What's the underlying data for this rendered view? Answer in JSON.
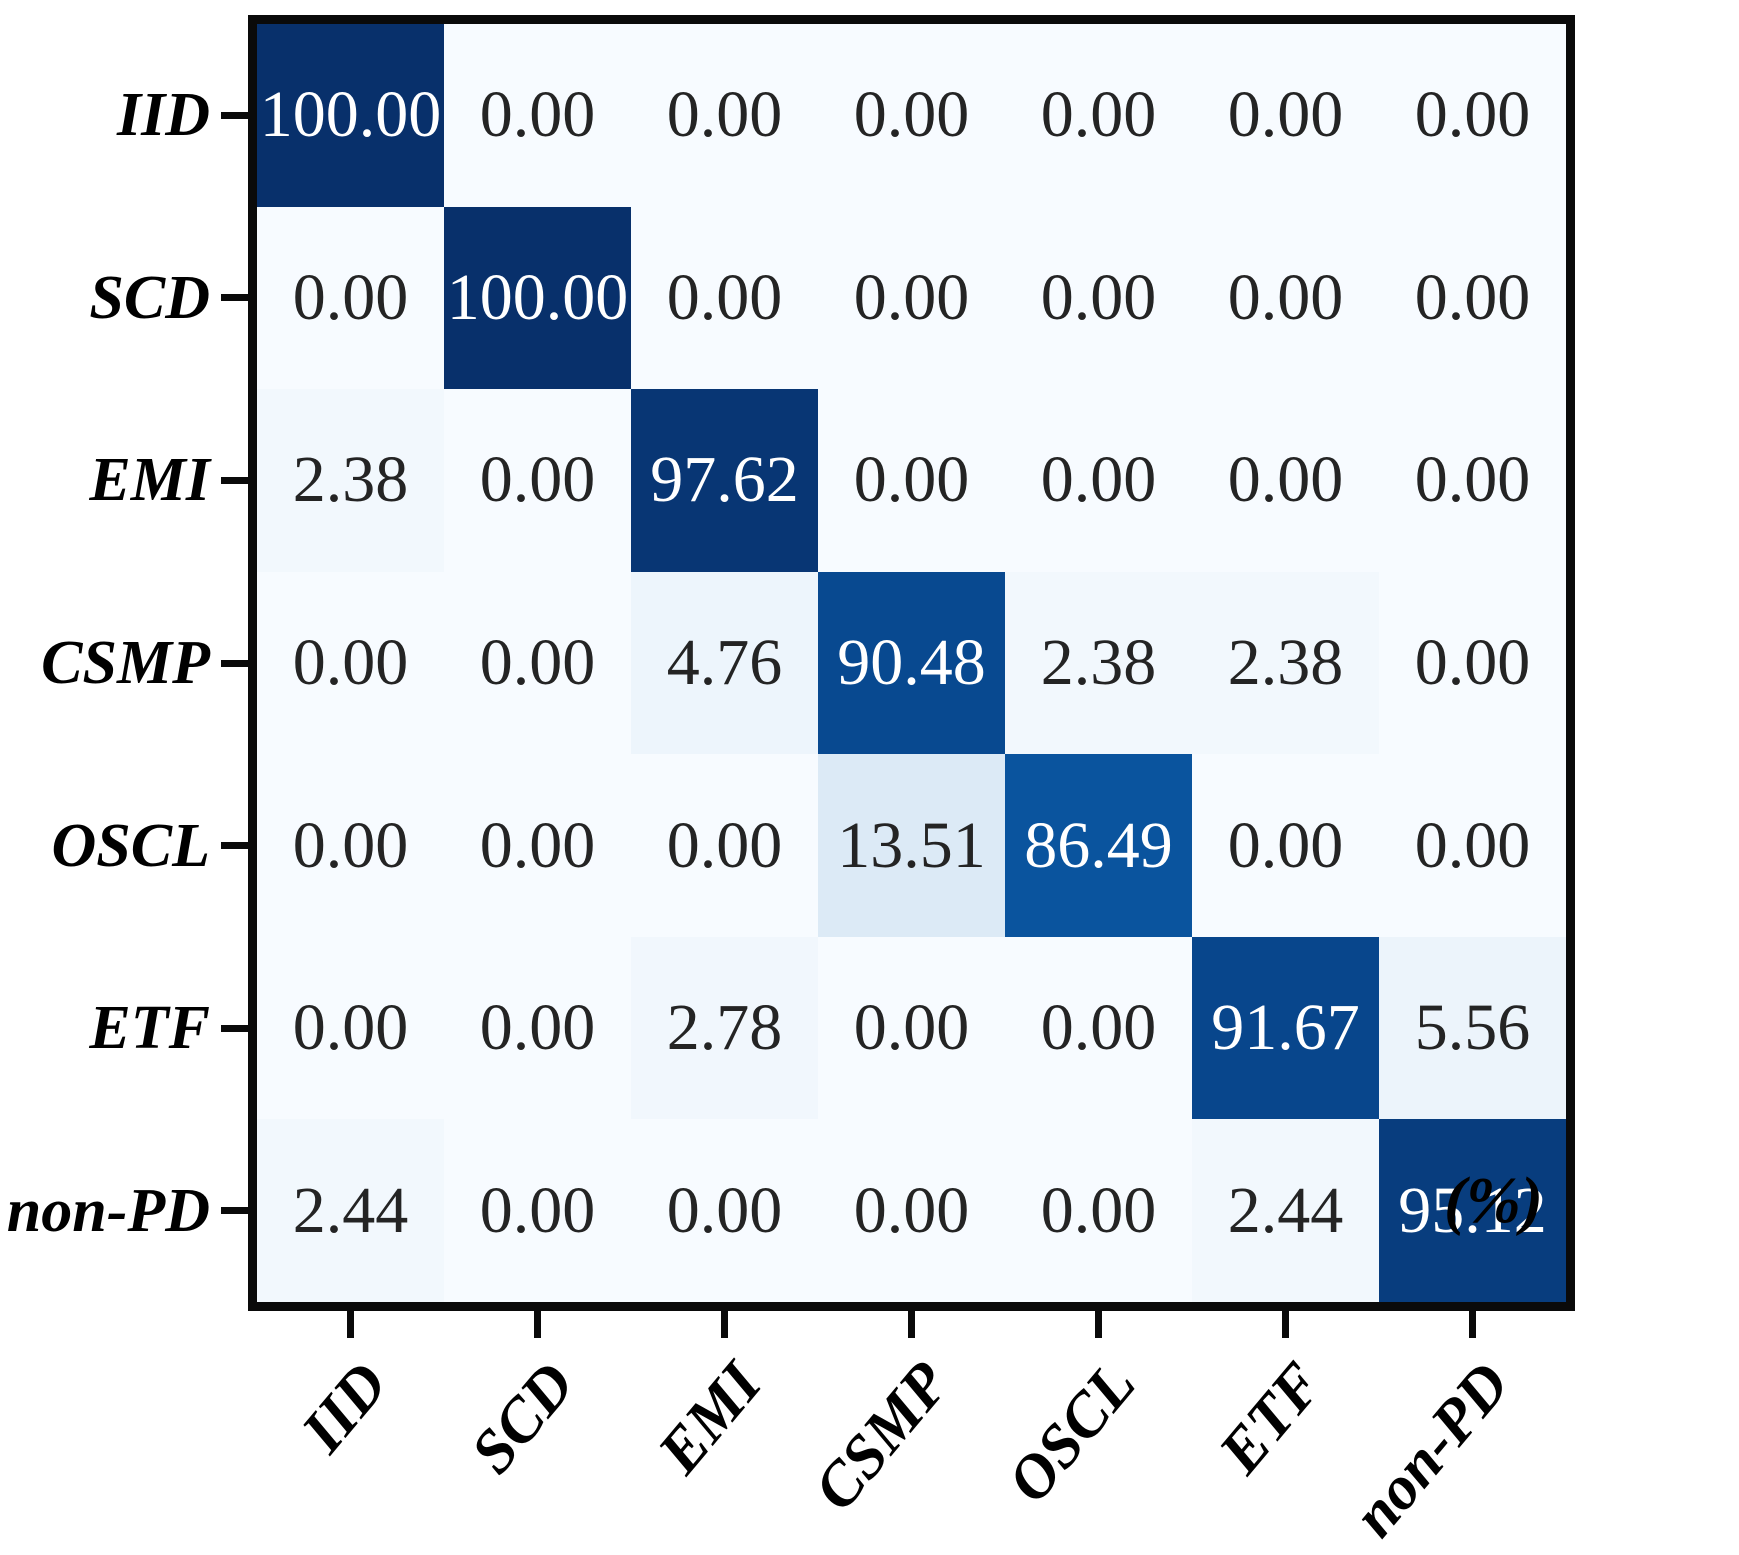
{
  "figure": {
    "unit_label": "(%)",
    "colors": {
      "background": "#ffffff",
      "frame": "#0a0a0a",
      "tick": "#0a0a0a",
      "axis_label_text": "#000000",
      "value_text_dark": "#242424",
      "value_text_light": "#ffffff",
      "diag_max_color": "#08306b",
      "min_cell_color": "#f7fbff"
    }
  },
  "chart_data": {
    "type": "heatmap",
    "title": "",
    "xlabel": "",
    "ylabel": "",
    "unit": "(%)",
    "legend": "none",
    "grid": false,
    "value_range": [
      0,
      100
    ],
    "text_color_threshold": 50,
    "colormap": "Blues",
    "colormap_stops": [
      [
        247,
        251,
        255
      ],
      [
        222,
        235,
        247
      ],
      [
        198,
        219,
        239
      ],
      [
        158,
        202,
        225
      ],
      [
        107,
        174,
        214
      ],
      [
        66,
        146,
        198
      ],
      [
        33,
        113,
        181
      ],
      [
        8,
        81,
        156
      ],
      [
        8,
        48,
        107
      ]
    ],
    "row_labels": [
      "IID",
      "SCD",
      "EMI",
      "CSMP",
      "OSCL",
      "ETF",
      "non-PD"
    ],
    "col_labels": [
      "IID",
      "SCD",
      "EMI",
      "CSMP",
      "OSCL",
      "ETF",
      "non-PD"
    ],
    "matrix": [
      [
        100.0,
        0.0,
        0.0,
        0.0,
        0.0,
        0.0,
        0.0
      ],
      [
        0.0,
        100.0,
        0.0,
        0.0,
        0.0,
        0.0,
        0.0
      ],
      [
        2.38,
        0.0,
        97.62,
        0.0,
        0.0,
        0.0,
        0.0
      ],
      [
        0.0,
        0.0,
        4.76,
        90.48,
        2.38,
        2.38,
        0.0
      ],
      [
        0.0,
        0.0,
        0.0,
        13.51,
        86.49,
        0.0,
        0.0
      ],
      [
        0.0,
        0.0,
        2.78,
        0.0,
        0.0,
        91.67,
        5.56
      ],
      [
        2.44,
        0.0,
        0.0,
        0.0,
        0.0,
        2.44,
        95.12
      ]
    ]
  }
}
